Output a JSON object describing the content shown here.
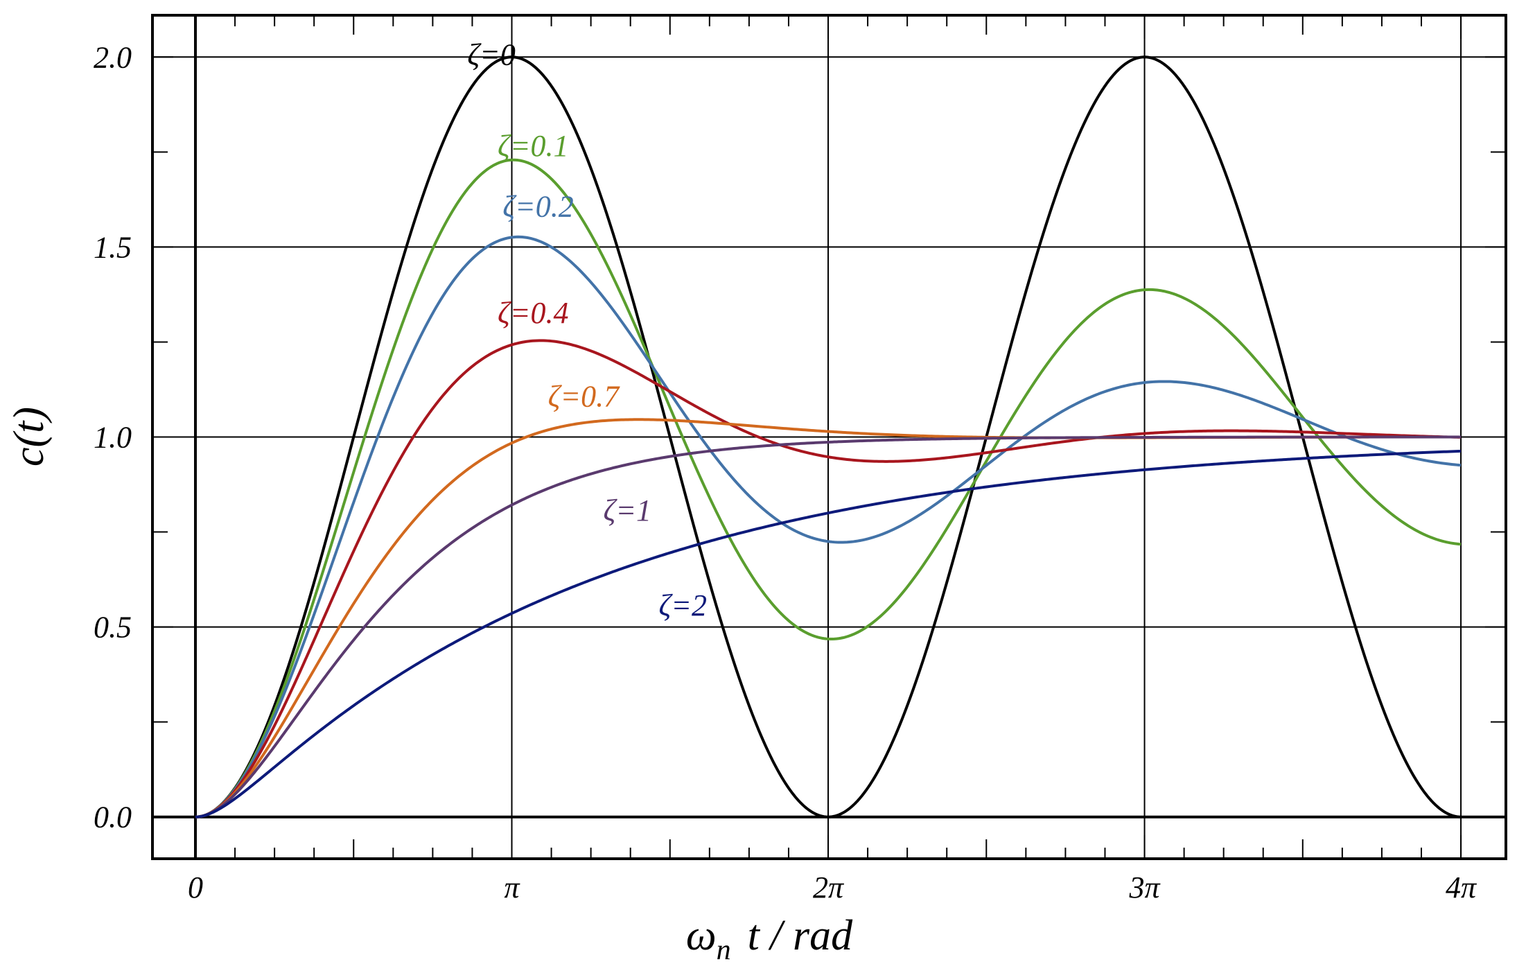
{
  "chart_data": {
    "type": "line",
    "title": "",
    "xlabel": "ωn t / rad",
    "xlabel_main": "ω",
    "xlabel_sub": "n",
    "xlabel_rest": "t / rad",
    "ylabel": "c(t)",
    "xlim": [
      0,
      12.566
    ],
    "ylim": [
      -0.11,
      2.11
    ],
    "x_ticks": [
      {
        "value": 0,
        "label": "0"
      },
      {
        "value": 3.1416,
        "label": "π"
      },
      {
        "value": 6.2832,
        "label": "2π"
      },
      {
        "value": 9.4248,
        "label": "3π"
      },
      {
        "value": 12.5664,
        "label": "4π"
      }
    ],
    "y_ticks": [
      {
        "value": 0.0,
        "label": "0.0"
      },
      {
        "value": 0.5,
        "label": "0.5"
      },
      {
        "value": 1.0,
        "label": "1.0"
      },
      {
        "value": 1.5,
        "label": "1.5"
      },
      {
        "value": 2.0,
        "label": "2.0"
      }
    ],
    "grid": true,
    "legend": "inline labels",
    "series": [
      {
        "name": "ζ=0",
        "zeta": 0,
        "color": "#000000",
        "label_at": [
          2.7,
          1.98
        ]
      },
      {
        "name": "ζ=0.1",
        "zeta": 0.1,
        "color": "#5a9e2e",
        "label_at": [
          3.0,
          1.74
        ]
      },
      {
        "name": "ζ=0.2",
        "zeta": 0.2,
        "color": "#4373a8",
        "label_at": [
          3.05,
          1.58
        ]
      },
      {
        "name": "ζ=0.4",
        "zeta": 0.4,
        "color": "#a8161e",
        "label_at": [
          3.0,
          1.3
        ]
      },
      {
        "name": "ζ=0.7",
        "zeta": 0.7,
        "color": "#d2691e",
        "label_at": [
          3.5,
          1.08
        ]
      },
      {
        "name": "ζ=1",
        "zeta": 1,
        "color": "#5a3a6e",
        "label_at": [
          4.05,
          0.78
        ]
      },
      {
        "name": "ζ=2",
        "zeta": 2,
        "color": "#0d1a7a",
        "label_at": [
          4.6,
          0.53
        ]
      }
    ]
  }
}
